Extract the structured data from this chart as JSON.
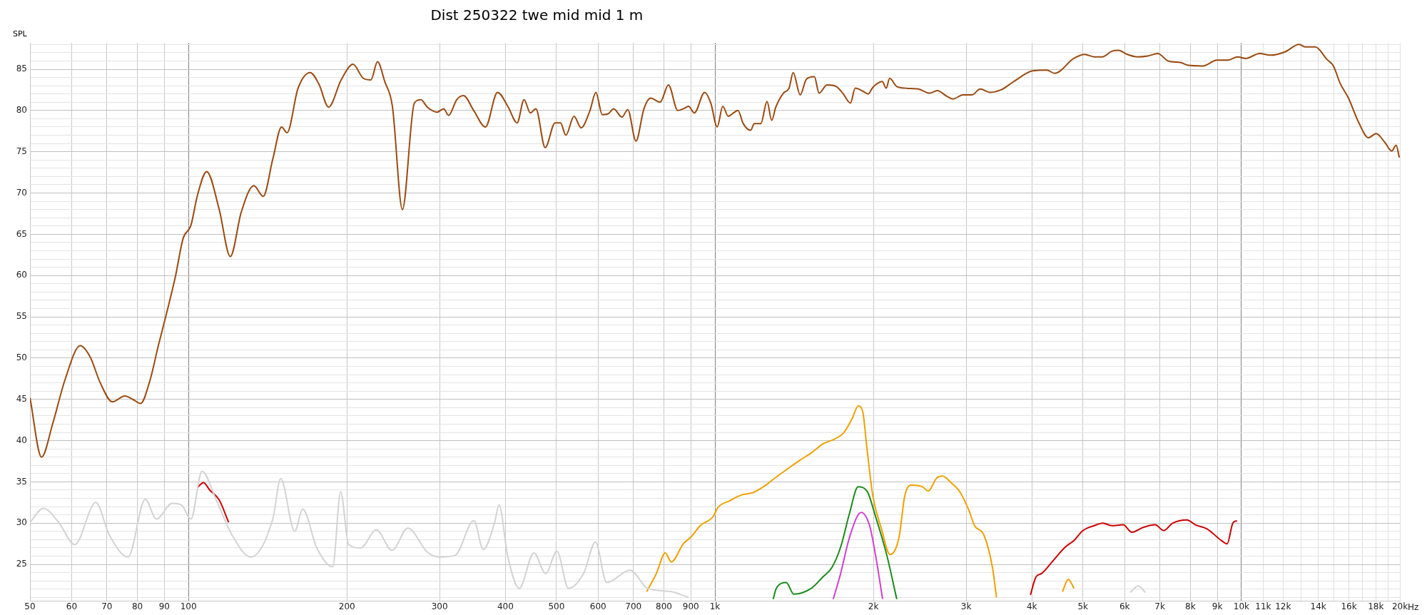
{
  "chart_data": {
    "type": "line",
    "title": "Dist 250322 twe mid mid 1 m",
    "ylabel": "SPL",
    "log": "x",
    "grid": true,
    "xlim": [
      50,
      20000
    ],
    "ylim": [
      20.6,
      88.2
    ],
    "xticks": [
      50,
      60,
      70,
      80,
      90,
      100,
      200,
      300,
      400,
      500,
      600,
      700,
      800,
      900,
      {
        "value": 1000,
        "label": "1k"
      },
      {
        "value": 2000,
        "label": "2k"
      },
      {
        "value": 3000,
        "label": "3k"
      },
      {
        "value": 4000,
        "label": "4k"
      },
      {
        "value": 5000,
        "label": "5k"
      },
      {
        "value": 6000,
        "label": "6k"
      },
      {
        "value": 7000,
        "label": "7k"
      },
      {
        "value": 8000,
        "label": "8k"
      },
      {
        "value": 9000,
        "label": "9k"
      },
      {
        "value": 10000,
        "label": "10k"
      },
      {
        "value": 11000,
        "label": "11k"
      },
      {
        "value": 12000,
        "label": "12k"
      },
      {
        "value": 13000,
        "label": null
      },
      {
        "value": 14000,
        "label": "14k"
      },
      {
        "value": 15000,
        "label": null
      },
      {
        "value": 16000,
        "label": "16k"
      },
      {
        "value": 17000,
        "label": null
      },
      {
        "value": 18000,
        "label": "18k"
      },
      {
        "value": 19000,
        "label": null
      },
      {
        "value": 20000,
        "label": "20k"
      }
    ],
    "xlabel": "Hz",
    "yticks": [
      {
        "value": 21,
        "label": null
      },
      {
        "value": 22,
        "label": null
      },
      {
        "value": 23,
        "label": null
      },
      {
        "value": 24,
        "label": null
      },
      25,
      {
        "value": 26,
        "label": null
      },
      {
        "value": 27,
        "label": null
      },
      {
        "value": 28,
        "label": null
      },
      {
        "value": 29,
        "label": null
      },
      30,
      {
        "value": 31,
        "label": null
      },
      {
        "value": 32,
        "label": null
      },
      {
        "value": 33,
        "label": null
      },
      {
        "value": 34,
        "label": null
      },
      35,
      {
        "value": 36,
        "label": null
      },
      {
        "value": 37,
        "label": null
      },
      {
        "value": 38,
        "label": null
      },
      {
        "value": 39,
        "label": null
      },
      40,
      {
        "value": 41,
        "label": null
      },
      {
        "value": 42,
        "label": null
      },
      {
        "value": 43,
        "label": null
      },
      {
        "value": 44,
        "label": null
      },
      45,
      {
        "value": 46,
        "label": null
      },
      {
        "value": 47,
        "label": null
      },
      {
        "value": 48,
        "label": null
      },
      {
        "value": 49,
        "label": null
      },
      50,
      {
        "value": 51,
        "label": null
      },
      {
        "value": 52,
        "label": null
      },
      {
        "value": 53,
        "label": null
      },
      {
        "value": 54,
        "label": null
      },
      55,
      {
        "value": 56,
        "label": null
      },
      {
        "value": 57,
        "label": null
      },
      {
        "value": 58,
        "label": null
      },
      {
        "value": 59,
        "label": null
      },
      60,
      {
        "value": 61,
        "label": null
      },
      {
        "value": 62,
        "label": null
      },
      {
        "value": 63,
        "label": null
      },
      {
        "value": 64,
        "label": null
      },
      65,
      {
        "value": 66,
        "label": null
      },
      {
        "value": 67,
        "label": null
      },
      {
        "value": 68,
        "label": null
      },
      {
        "value": 69,
        "label": null
      },
      70,
      {
        "value": 71,
        "label": null
      },
      {
        "value": 72,
        "label": null
      },
      {
        "value": 73,
        "label": null
      },
      {
        "value": 74,
        "label": null
      },
      75,
      {
        "value": 76,
        "label": null
      },
      {
        "value": 77,
        "label": null
      },
      {
        "value": 78,
        "label": null
      },
      {
        "value": 79,
        "label": null
      },
      80,
      {
        "value": 81,
        "label": null
      },
      {
        "value": 82,
        "label": null
      },
      {
        "value": 83,
        "label": null
      },
      {
        "value": 84,
        "label": null
      },
      85,
      {
        "value": 86,
        "label": null
      },
      {
        "value": 87,
        "label": null
      },
      {
        "value": 88,
        "label": null
      }
    ],
    "series": [
      {
        "color": "#d3d3d3",
        "x": [
          50,
          53,
          56.7,
          60.8,
          66.7,
          70.7,
          76.8,
          82.8,
          86.9,
          93.1,
          97,
          101.1,
          106.1,
          112.9,
          120.9,
          131.3,
          144.6,
          149.7,
          159.2,
          164.8,
          175.3,
          187.9,
          194.6,
          201.5,
          212.4,
          227.4,
          243.6,
          261,
          284.2,
          299.9,
          321,
          348.4,
          363.1,
          381.6,
          389,
          404,
          425,
          453,
          477,
          501,
          527,
          563,
          593,
          623,
          690,
          745,
          826,
          891,
          3000,
          6148,
          6372,
          6570
        ],
        "values": [
          30.1,
          31.8,
          30.1,
          27.4,
          32.5,
          28.6,
          25.9,
          32.9,
          30.5,
          32.4,
          32.2,
          30.5,
          36.3,
          32.8,
          28.6,
          25.9,
          30.5,
          35.4,
          29,
          31.7,
          27,
          24.7,
          33.8,
          27.4,
          27,
          29.2,
          26.7,
          29.4,
          26.5,
          25.9,
          26.1,
          30.3,
          26.8,
          30.1,
          32.2,
          26,
          22.1,
          26.4,
          23.9,
          26.6,
          22.1,
          23.9,
          27.7,
          22.8,
          24.3,
          22.1,
          21.7,
          21,
          null,
          21.6,
          22.4,
          21.6
        ]
      },
      {
        "color": "#9a4a10",
        "x": [
          50,
          52.6,
          55.2,
          58.3,
          62.3,
          65.1,
          68,
          71.7,
          75.7,
          78.4,
          81.1,
          84.6,
          87.5,
          90.6,
          94.4,
          97.7,
          101.1,
          103.9,
          108.3,
          114.4,
          120.1,
          126,
          133.1,
          138.7,
          144.6,
          150.3,
          153.9,
          161.5,
          170.3,
          176.9,
          184.6,
          195,
          205.4,
          214.8,
          222.1,
          228.6,
          236,
          244,
          254.9,
          268.6,
          276.4,
          284.3,
          296.7,
          305.3,
          312,
          323.2,
          333,
          348.2,
          366.5,
          386.4,
          405,
          421,
          434,
          446,
          457,
          476,
          497,
          509,
          521,
          540,
          557,
          579,
          594,
          611,
          627,
          642,
          666,
          683,
          708,
          733,
          755,
          787,
          816,
          850,
          877,
          891,
          914,
          956,
          982,
          1010,
          1035,
          1060,
          1079,
          1106,
          1132,
          1169,
          1188,
          1222,
          1256,
          1282,
          1305,
          1349,
          1383,
          1408,
          1452,
          1492,
          1545,
          1577,
          1633,
          1701,
          1749,
          1809,
          1847,
          1914,
          1954,
          1995,
          2079,
          2115,
          2147,
          2216,
          2307,
          2436,
          2556,
          2645,
          2761,
          2835,
          2958,
          3078,
          3191,
          3331,
          3495,
          3694,
          4012,
          4267,
          4420,
          4803,
          5035,
          5252,
          5442,
          5678,
          5839,
          6070,
          6346,
          6640,
          6937,
          7258,
          7673,
          7891,
          8450,
          8992,
          9437,
          9836,
          10181,
          10833,
          11370,
          12097,
          12874,
          13241,
          13819,
          14531,
          14955,
          15398,
          15974,
          16689,
          17435,
          18027,
          18745,
          19303,
          19676,
          19950
        ],
        "values": [
          45.2,
          38,
          42,
          47.4,
          51.5,
          50.1,
          47,
          44.7,
          45.4,
          45,
          44.5,
          47.4,
          51.3,
          55.1,
          59.8,
          64.5,
          66.1,
          69.6,
          72.6,
          68,
          62.3,
          67.7,
          70.9,
          69.6,
          74.1,
          78,
          77.3,
          82.7,
          84.6,
          83.2,
          80.4,
          83.7,
          85.6,
          83.9,
          83.7,
          85.9,
          83.5,
          80.5,
          68,
          80.9,
          81.3,
          80.4,
          79.8,
          80.2,
          79.4,
          81.3,
          81.8,
          80,
          78,
          82.2,
          80.4,
          78.5,
          81.3,
          79.7,
          80.2,
          75.5,
          78.5,
          78.5,
          77,
          79.3,
          77.9,
          80,
          82.2,
          79.5,
          79.6,
          80.2,
          79.2,
          80.1,
          76.3,
          80.2,
          81.5,
          81,
          83.1,
          80,
          80.3,
          80.5,
          79.7,
          82.2,
          80.9,
          78,
          80.5,
          79.3,
          79.6,
          80,
          78.4,
          77.6,
          78.4,
          78.4,
          81.1,
          78.8,
          80.4,
          82.1,
          82.7,
          84.6,
          81.9,
          83.8,
          84.1,
          82.1,
          83.1,
          82.9,
          82.1,
          80.9,
          82.7,
          82.3,
          82,
          82.8,
          83.5,
          82.7,
          83.9,
          82.9,
          82.7,
          82.6,
          82.1,
          82.4,
          81.7,
          81.4,
          81.9,
          81.9,
          82.6,
          82.2,
          82.5,
          83.5,
          84.8,
          84.9,
          84.5,
          86.3,
          86.8,
          86.5,
          86.5,
          87.2,
          87.3,
          86.8,
          86.5,
          86.6,
          86.9,
          86,
          85.8,
          85.5,
          85.4,
          86.1,
          86.1,
          86.5,
          86.3,
          86.9,
          86.7,
          87.1,
          88,
          87.7,
          87.7,
          86.2,
          85.4,
          83.3,
          81.5,
          78.6,
          76.7,
          77.2,
          76.1,
          75.1,
          75.8,
          74.3
        ]
      },
      {
        "color": "#f0a000",
        "x": [
          742,
          774,
          805,
          826,
          871,
          903,
          938,
          992,
          1013,
          1066,
          1122,
          1181,
          1243,
          1308,
          1376,
          1448,
          1524,
          1604,
          1688,
          1754,
          1823,
          1871,
          1910,
          1944,
          1995,
          2072,
          2151,
          2236,
          2294,
          2354,
          2479,
          2542,
          2640,
          2706,
          2809,
          2925,
          3039,
          3112,
          3240,
          3367,
          3426,
          4000,
          4573,
          4689,
          4809
        ],
        "values": [
          21.7,
          23.9,
          26.4,
          25.3,
          27.5,
          28.4,
          29.7,
          30.8,
          31.9,
          32.7,
          33.4,
          33.7,
          34.5,
          35.6,
          36.6,
          37.6,
          38.5,
          39.6,
          40.2,
          40.9,
          42.7,
          44.2,
          43.4,
          39.1,
          33.3,
          29.3,
          26.2,
          28.2,
          33.3,
          34.6,
          34.4,
          33.9,
          35.5,
          35.7,
          34.9,
          33.7,
          31.5,
          29.7,
          28.6,
          24.6,
          21,
          null,
          21.7,
          23.2,
          22.1
        ]
      },
      {
        "color": "#1a8a1a",
        "x": [
          1290,
          1308,
          1366,
          1412,
          1524,
          1604,
          1667,
          1733,
          1800,
          1871,
          1944,
          2019,
          2121,
          2215
        ],
        "values": [
          20.8,
          22.1,
          22.8,
          21.4,
          22.1,
          23.5,
          24.6,
          27.1,
          31.1,
          34.4,
          33.9,
          30.8,
          26.1,
          20.8
        ]
      },
      {
        "color": "#d040d0",
        "x": [
          1678,
          1733,
          1800,
          1896,
          1967,
          2019,
          2082
        ],
        "values": [
          20.8,
          23.9,
          28.2,
          31.3,
          29.7,
          26.1,
          20.8
        ]
      },
      {
        "color": "#cc0000",
        "x": [
          103.9,
          106.8,
          109.8,
          114.4,
          119.2,
          1000,
          3974,
          4073,
          4173,
          4395,
          4628,
          4809,
          4998,
          5254,
          5458,
          5668,
          5962,
          6195,
          6519,
          6856,
          7123,
          7399,
          7880,
          8180,
          8605,
          9160,
          9394,
          9632,
          9810
        ],
        "values": [
          34.3,
          34.9,
          34,
          32.8,
          30.1,
          null,
          21.3,
          23.5,
          23.9,
          25.5,
          27.1,
          27.9,
          29.1,
          29.7,
          30,
          29.7,
          29.8,
          28.9,
          29.5,
          29.8,
          29.1,
          30,
          30.4,
          29.8,
          29.3,
          27.9,
          27.5,
          30,
          30.3
        ]
      }
    ]
  }
}
